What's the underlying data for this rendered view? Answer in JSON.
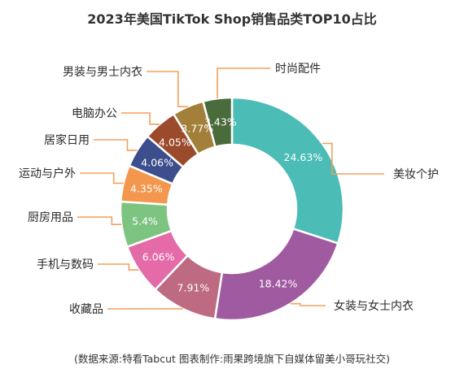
{
  "chart_data": {
    "type": "pie",
    "title": "2023年美国TikTok Shop销售品类TOP10占比",
    "categories": [
      "美妆个护",
      "女装与女士内衣",
      "收藏品",
      "手机与数码",
      "厨房用品",
      "运动与户外",
      "居家日用",
      "电脑办公",
      "男装与男士内衣",
      "时尚配件"
    ],
    "value_labels": [
      "24.63%",
      "18.42%",
      "7.91%",
      "6.06%",
      "5.4%",
      "4.35%",
      "4.06%",
      "4.05%",
      "3.77%",
      "3.43%"
    ],
    "values": [
      24.63,
      18.42,
      7.91,
      6.06,
      5.4,
      4.35,
      4.06,
      4.05,
      3.77,
      3.43
    ],
    "colors": [
      "#4bbcb6",
      "#a05ba0",
      "#bd6a82",
      "#e56aa8",
      "#7dc481",
      "#f3974e",
      "#3c4f8c",
      "#9c4a2c",
      "#a3803a",
      "#4a6b3b"
    ],
    "leader_color": "#f5a05a",
    "donut": true,
    "legend": "none"
  },
  "footer": "(数据来源:特看Tabcut    图表制作:雨果跨境旗下自媒体留美小哥玩社交)"
}
